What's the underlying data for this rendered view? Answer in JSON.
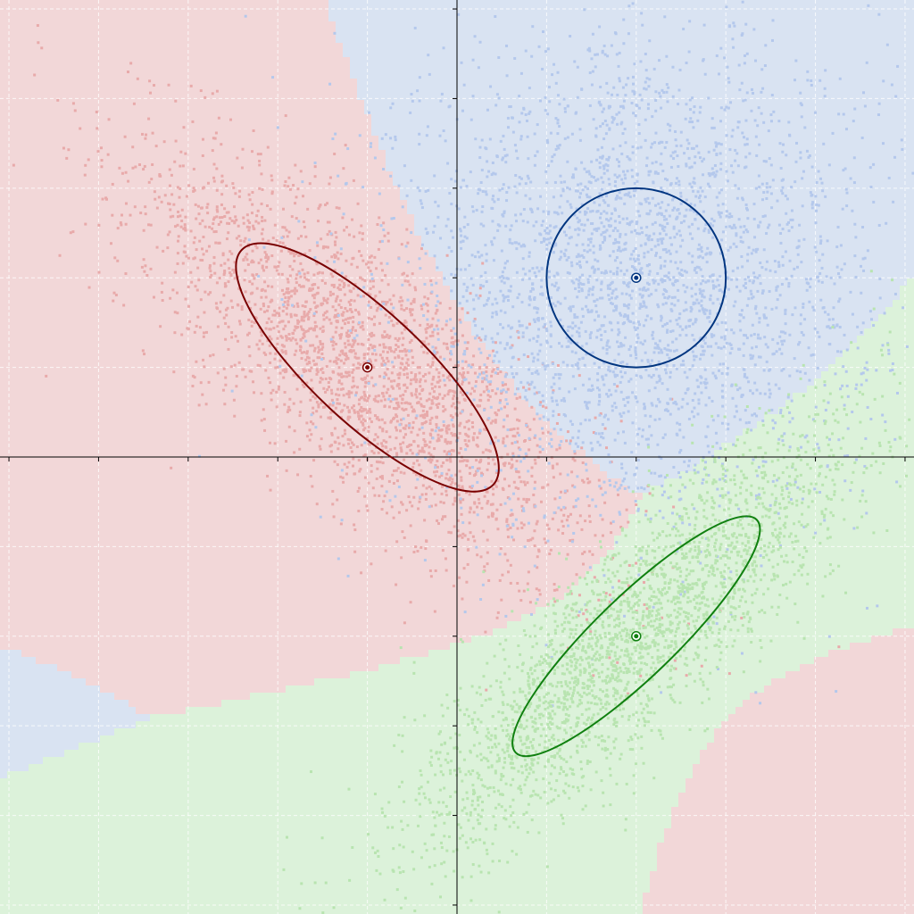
{
  "chart_data": {
    "type": "scatter",
    "title": "",
    "xlabel": "",
    "ylabel": "",
    "xlim": [
      -5.1,
      5.1
    ],
    "ylim": [
      -5.1,
      5.1
    ],
    "grid": true,
    "axes_through_origin": true,
    "tick_step": 1,
    "legend": "none",
    "series": [
      {
        "color": "#e8aaaa",
        "region_color": "#f2d7d8",
        "ellipse_color": "#7a0000",
        "mean": [
          -1,
          1
        ],
        "ellipse": {
          "semi_major": 1.92,
          "semi_minor": 0.62,
          "angle_deg": -43
        },
        "spread": {
          "major": 1.65,
          "minor": 0.6
        },
        "n_points": 2600
      },
      {
        "color": "#b4c8ec",
        "region_color": "#d9e3f2",
        "ellipse_color": "#003580",
        "mean": [
          2,
          2
        ],
        "ellipse": {
          "semi_major": 1.0,
          "semi_minor": 1.0,
          "angle_deg": 0
        },
        "spread": {
          "major": 1.35,
          "minor": 1.35
        },
        "n_points": 3200
      },
      {
        "color": "#b8e4b0",
        "region_color": "#dcf2da",
        "ellipse_color": "#108010",
        "mean": [
          2,
          -2
        ],
        "ellipse": {
          "semi_major": 1.87,
          "semi_minor": 0.45,
          "angle_deg": 44
        },
        "spread": {
          "major": 1.7,
          "minor": 0.45
        },
        "n_points": 2600
      }
    ]
  }
}
